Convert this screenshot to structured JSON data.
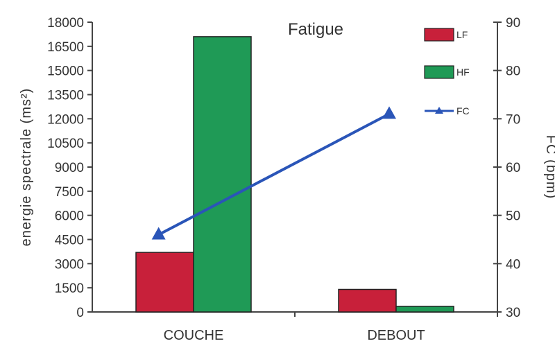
{
  "chart_data": {
    "type": "bar",
    "title": "Fatigue",
    "categories": [
      "COUCHE",
      "DEBOUT"
    ],
    "series": [
      {
        "name": "LF",
        "type": "bar",
        "axis": "left",
        "color": "#c8203a",
        "values": [
          3700,
          1400
        ]
      },
      {
        "name": "HF",
        "type": "bar",
        "axis": "left",
        "color": "#1f9a56",
        "values": [
          17100,
          350
        ]
      },
      {
        "name": "FC",
        "type": "line",
        "axis": "right",
        "color": "#2a55b8",
        "values": [
          46,
          71
        ]
      }
    ],
    "ylabel": "energie spectrale (ms²)",
    "ylim": [
      0,
      18000
    ],
    "yticks": [
      "0",
      "1500",
      "3000",
      "4500",
      "6000",
      "7500",
      "9000",
      "10500",
      "12000",
      "13500",
      "15000",
      "16500",
      "18000"
    ],
    "y2label": "FC (bpm)",
    "y2lim": [
      30,
      90
    ],
    "y2ticks": [
      "30",
      "40",
      "50",
      "60",
      "70",
      "80",
      "90"
    ],
    "legend": "top-right",
    "grid": false
  }
}
